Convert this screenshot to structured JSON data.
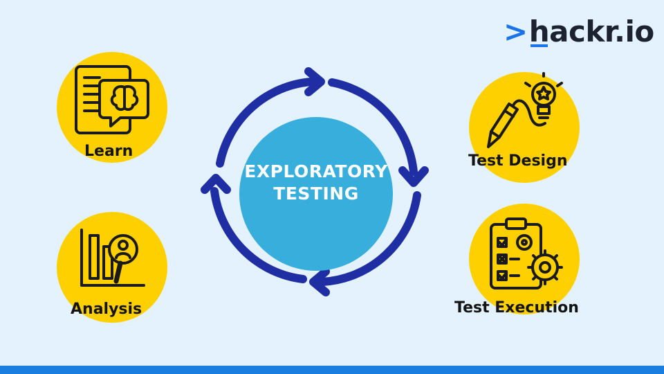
{
  "logo": {
    "prefix": ">",
    "h": "h",
    "rest": "ackr.io"
  },
  "center": {
    "line1": "EXPLORATORY",
    "line2": "TESTING"
  },
  "nodes": {
    "learn": "Learn",
    "test_design": "Test Design",
    "analysis": "Analysis",
    "test_execution": "Test Execution"
  },
  "colors": {
    "background": "#e3f2fd",
    "node_circle": "#ffd000",
    "center_circle": "#37aedc",
    "cycle_arrows": "#1f2fa3",
    "brand_blue": "#1a73e8"
  },
  "icons": {
    "learn": "book-brain-icon",
    "test_design": "pencil-lightbulb-icon",
    "analysis": "chart-magnifier-icon",
    "test_execution": "clipboard-gears-icon"
  }
}
